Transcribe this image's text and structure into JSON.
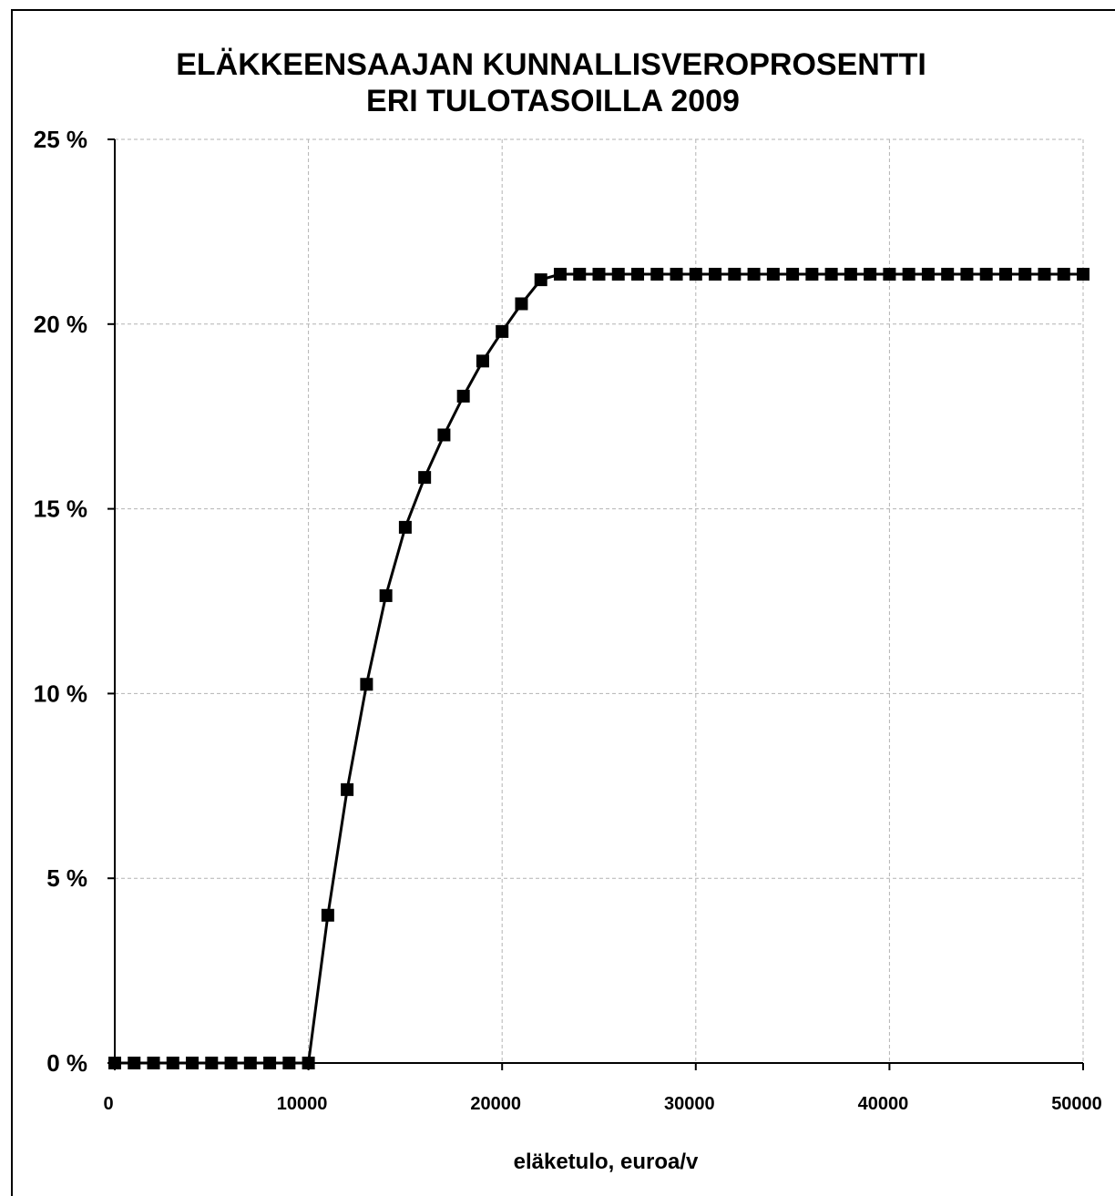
{
  "chart_data": {
    "type": "line",
    "title": [
      "ELÄKKEENSAAJAN KUNNALLISVEROPROSENTTI",
      "ERI TULOTASOILLA 2009"
    ],
    "xlabel": "eläketulo,  euroa/v",
    "ylabel": "",
    "xlim": [
      0,
      50000
    ],
    "ylim": [
      0,
      25
    ],
    "x_ticks": [
      0,
      10000,
      20000,
      30000,
      40000,
      50000
    ],
    "x_tick_labels": [
      "0",
      "10000",
      "20000",
      "30000",
      "40000",
      "50000"
    ],
    "y_ticks": [
      0,
      5,
      10,
      15,
      20,
      25
    ],
    "y_tick_labels": [
      "0 %",
      "5 %",
      "10 %",
      "15 %",
      "20 %",
      "25 %"
    ],
    "grid": true,
    "legend": "none",
    "line_color": "#000000",
    "marker": "square",
    "series": [
      {
        "x": [
          0,
          1000,
          2000,
          3000,
          4000,
          5000,
          6000,
          7000,
          8000,
          9000,
          10000,
          11000,
          12000,
          13000,
          14000,
          15000,
          16000,
          17000,
          18000,
          19000,
          20000,
          21000,
          22000,
          23000,
          24000,
          25000,
          26000,
          27000,
          28000,
          29000,
          30000,
          31000,
          32000,
          33000,
          34000,
          35000,
          36000,
          37000,
          38000,
          39000,
          40000,
          41000,
          42000,
          43000,
          44000,
          45000,
          46000,
          47000,
          48000,
          49000,
          50000
        ],
        "y": [
          0,
          0,
          0,
          0,
          0,
          0,
          0,
          0,
          0,
          0,
          0,
          4.0,
          7.4,
          10.25,
          12.65,
          14.5,
          15.85,
          17.0,
          18.05,
          19.0,
          19.8,
          20.55,
          21.2,
          21.35,
          21.35,
          21.35,
          21.35,
          21.35,
          21.35,
          21.35,
          21.35,
          21.35,
          21.35,
          21.35,
          21.35,
          21.35,
          21.35,
          21.35,
          21.35,
          21.35,
          21.35,
          21.35,
          21.35,
          21.35,
          21.35,
          21.35,
          21.35,
          21.35,
          21.35,
          21.35,
          21.35
        ]
      }
    ]
  }
}
